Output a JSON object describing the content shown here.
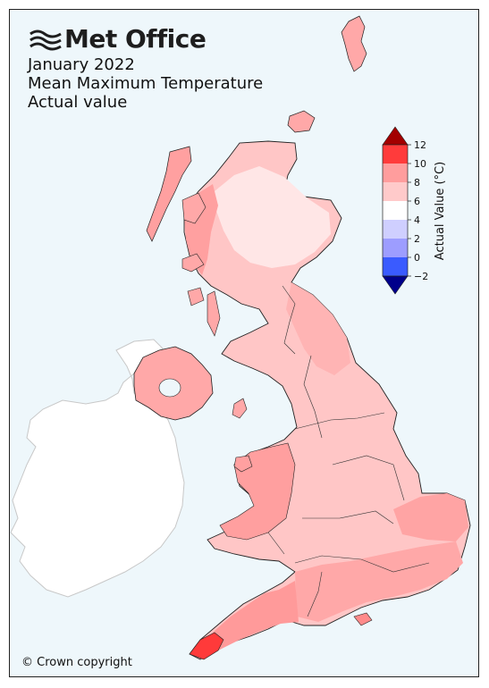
{
  "branding": {
    "name": "Met Office"
  },
  "title": {
    "period": "January 2022",
    "variable": "Mean Maximum Temperature",
    "measure": "Actual value"
  },
  "colorbar": {
    "label": "Actual Value (°C)",
    "ticks": [
      "12",
      "10",
      "8",
      "6",
      "4",
      "2",
      "0",
      "−2"
    ],
    "colors": [
      "#a30000",
      "#ff3b3b",
      "#ff9d9d",
      "#ffcaca",
      "#ffffff",
      "#cfcfff",
      "#9d9dff",
      "#3a5bff",
      "#00008b"
    ]
  },
  "footer": {
    "copyright": "© Crown copyright"
  }
}
